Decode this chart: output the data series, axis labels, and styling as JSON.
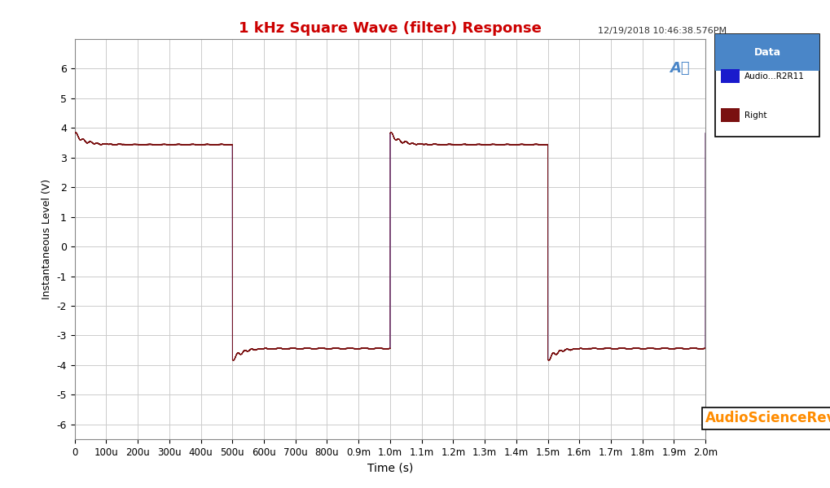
{
  "title": "1 kHz Square Wave (filter) Response",
  "title_color": "#cc0000",
  "xlabel": "Time (s)",
  "ylabel": "Instantaneous Level (V)",
  "timestamp": "12/19/2018 10:46:38.576PM",
  "watermark": "AudioScienceReview.com",
  "xlim": [
    0,
    0.002
  ],
  "ylim": [
    -6.5,
    7.0
  ],
  "yticks": [
    -6,
    -5,
    -4,
    -3,
    -2,
    -1,
    0,
    1,
    2,
    3,
    4,
    5,
    6
  ],
  "xtick_labels": [
    "0",
    "100u",
    "200u",
    "300u",
    "400u",
    "500u",
    "600u",
    "700u",
    "800u",
    "0.9m",
    "1.0m",
    "1.1m",
    "1.2m",
    "1.3m",
    "1.4m",
    "1.5m",
    "1.6m",
    "1.7m",
    "1.8m",
    "1.9m",
    "2.0m"
  ],
  "xtick_values": [
    0,
    0.0001,
    0.0002,
    0.0003,
    0.0004,
    0.0005,
    0.0006,
    0.0007,
    0.0008,
    0.0009,
    0.001,
    0.0011,
    0.0012,
    0.0013,
    0.0014,
    0.0015,
    0.0016,
    0.0017,
    0.0018,
    0.0019,
    0.002
  ],
  "high_level": 3.44,
  "low_level": -3.44,
  "overshoot_high": 3.82,
  "overshoot_low": -3.82,
  "ringing_decay": 35000,
  "ringing_freq": 45000,
  "period": 0.001,
  "duty_cycle": 0.5,
  "color_blue": "#1a1acc",
  "color_red": "#7a1010",
  "bg_color": "#ffffff",
  "grid_color": "#cccccc",
  "legend_header_bg": "#4a86c8",
  "legend_header_text": "#ffffff",
  "legend_bg": "#ffffff",
  "legend_border": "#000000",
  "legend_label1": "Audio...R2R11",
  "legend_label2": "Right",
  "watermark_color": "#ff8c00",
  "watermark_border": "#000000",
  "ap_logo_color": "#4a86c8"
}
